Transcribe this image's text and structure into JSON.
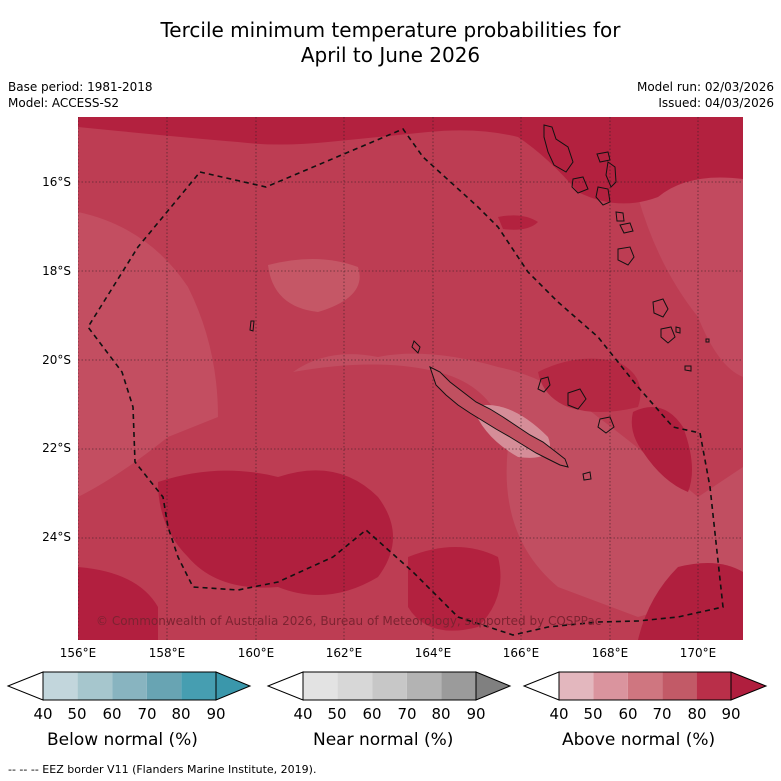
{
  "title_line1": "Tercile minimum temperature probabilities for",
  "title_line2": "April to June 2026",
  "meta": {
    "base_period": "Base period: 1981-2018",
    "model": "Model: ACCESS-S2",
    "model_run": "Model run: 02/03/2026",
    "issued": "Issued: 04/03/2026"
  },
  "map": {
    "lat_labels": [
      "16°S",
      "18°S",
      "20°S",
      "22°S",
      "24°S"
    ],
    "lon_labels": [
      "156°E",
      "158°E",
      "160°E",
      "162°E",
      "164°E",
      "166°E",
      "168°E",
      "170°E"
    ],
    "copyright": "© Commonwealth of Australia 2026, Bureau of Meteorology, supported by COSPPac",
    "colors": {
      "c60": "#c96a76",
      "c70": "#c04a5e",
      "c80": "#bb3a50",
      "c90": "#b21f3f",
      "c50": "#d99aa3"
    }
  },
  "colorbars": {
    "tick_labels": [
      "40",
      "50",
      "60",
      "70",
      "80",
      "90"
    ],
    "below": {
      "label": "Below normal (%)",
      "colors": [
        "#c2d6dc",
        "#a6c6cd",
        "#88b4c0",
        "#68a4b3",
        "#469eb1",
        "#3a97ab"
      ]
    },
    "near": {
      "label": "Near normal (%)",
      "colors": [
        "#e3e3e3",
        "#d7d7d7",
        "#c7c7c7",
        "#b3b3b3",
        "#9b9b9b",
        "#808080"
      ]
    },
    "above": {
      "label": "Above normal (%)",
      "colors": [
        "#e3b7be",
        "#da949e",
        "#cf7680",
        "#c25a67",
        "#b92f49",
        "#b01e3e"
      ]
    }
  },
  "footer": "-- -- -- EEZ border V11 (Flanders Marine Institute, 2019)."
}
